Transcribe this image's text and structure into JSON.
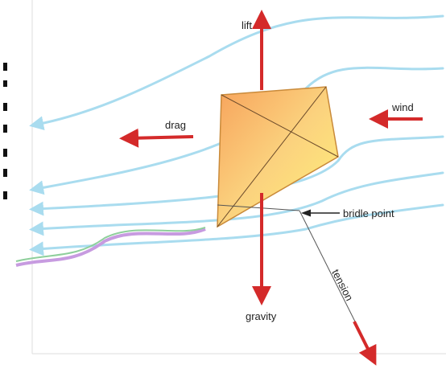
{
  "labels": {
    "lift": "lift",
    "drag": "drag",
    "wind": "wind",
    "bridle_point": "bridle point",
    "tension": "tension",
    "gravity": "gravity"
  }
}
